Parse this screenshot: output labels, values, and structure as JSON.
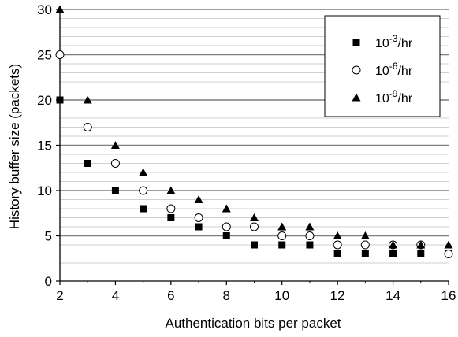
{
  "chart_data": {
    "type": "scatter",
    "xlabel": "Authentication bits per packet",
    "ylabel": "History buffer size (packets)",
    "xlim": [
      2,
      16
    ],
    "ylim": [
      0,
      30
    ],
    "x_ticks": [
      "2",
      "4",
      "6",
      "8",
      "10",
      "12",
      "14",
      "16"
    ],
    "y_ticks": [
      "0",
      "5",
      "10",
      "15",
      "20",
      "25",
      "30"
    ],
    "grid": "horizontal major and minor lines",
    "legend_position": "top-right",
    "series": [
      {
        "name_base": "10",
        "name_exp": "-3",
        "name_suffix": "/hr",
        "marker": "filled-square",
        "x": [
          2,
          3,
          4,
          5,
          6,
          7,
          8,
          9,
          10,
          11,
          12,
          13,
          14,
          15,
          16
        ],
        "values": [
          20,
          13,
          10,
          8,
          7,
          6,
          5,
          4,
          4,
          4,
          3,
          3,
          3,
          3,
          3
        ]
      },
      {
        "name_base": "10",
        "name_exp": "-6",
        "name_suffix": "/hr",
        "marker": "open-circle",
        "x": [
          2,
          3,
          4,
          5,
          6,
          7,
          8,
          9,
          10,
          11,
          12,
          13,
          14,
          15,
          16
        ],
        "values": [
          25,
          17,
          13,
          10,
          8,
          7,
          6,
          6,
          5,
          5,
          4,
          4,
          4,
          4,
          3
        ]
      },
      {
        "name_base": "10",
        "name_exp": "-9",
        "name_suffix": "/hr",
        "marker": "filled-triangle",
        "x": [
          2,
          3,
          4,
          5,
          6,
          7,
          8,
          9,
          10,
          11,
          12,
          13,
          14,
          15,
          16
        ],
        "values": [
          30,
          20,
          15,
          12,
          10,
          9,
          8,
          7,
          6,
          6,
          5,
          5,
          4,
          4,
          4
        ]
      }
    ]
  }
}
